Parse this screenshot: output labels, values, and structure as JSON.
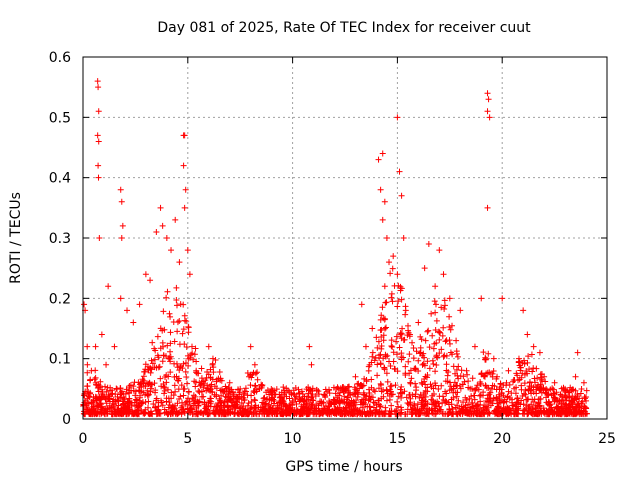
{
  "chart_data": {
    "type": "scatter",
    "title": "Day 081 of 2025, Rate Of TEC Index for receiver cuut",
    "xlabel": "GPS time / hours",
    "ylabel": "ROTI / TECUs",
    "xlim": [
      0,
      25
    ],
    "ylim": [
      0,
      0.6
    ],
    "xticks": [
      0,
      5,
      10,
      15,
      20,
      25
    ],
    "xtick_labels": [
      "0",
      "5",
      "10",
      "15",
      "20",
      "25"
    ],
    "yticks": [
      0,
      0.1,
      0.2,
      0.3,
      0.4,
      0.5,
      0.6
    ],
    "ytick_labels": [
      "0",
      "0.1",
      "0.2",
      "0.3",
      "0.4",
      "0.5",
      "0.6"
    ],
    "grid": true,
    "marker": "+",
    "color": "#ff0000",
    "series": [
      {
        "values": [
          [
            0.05,
            0.19
          ],
          [
            0.1,
            0.18
          ],
          [
            0.2,
            0.12
          ],
          [
            0.4,
            0.08
          ],
          [
            0.6,
            0.12
          ],
          [
            0.7,
            0.56
          ],
          [
            0.72,
            0.55
          ],
          [
            0.75,
            0.51
          ],
          [
            0.7,
            0.47
          ],
          [
            0.75,
            0.46
          ],
          [
            0.72,
            0.42
          ],
          [
            0.74,
            0.4
          ],
          [
            0.78,
            0.3
          ],
          [
            0.9,
            0.14
          ],
          [
            1.1,
            0.09
          ],
          [
            1.2,
            0.22
          ],
          [
            1.5,
            0.12
          ],
          [
            1.8,
            0.38
          ],
          [
            1.85,
            0.36
          ],
          [
            1.9,
            0.32
          ],
          [
            1.85,
            0.3
          ],
          [
            1.8,
            0.2
          ],
          [
            2.1,
            0.18
          ],
          [
            2.4,
            0.16
          ],
          [
            2.7,
            0.19
          ],
          [
            3.0,
            0.24
          ],
          [
            3.2,
            0.23
          ],
          [
            3.5,
            0.31
          ],
          [
            3.7,
            0.35
          ],
          [
            3.8,
            0.32
          ],
          [
            4.0,
            0.3
          ],
          [
            4.2,
            0.28
          ],
          [
            4.4,
            0.33
          ],
          [
            4.6,
            0.26
          ],
          [
            4.8,
            0.47
          ],
          [
            4.85,
            0.47
          ],
          [
            4.8,
            0.42
          ],
          [
            4.9,
            0.38
          ],
          [
            4.85,
            0.35
          ],
          [
            5.0,
            0.28
          ],
          [
            5.1,
            0.24
          ],
          [
            5.2,
            0.12
          ],
          [
            5.4,
            0.08
          ],
          [
            6.0,
            0.12
          ],
          [
            6.2,
            0.1
          ],
          [
            7.0,
            0.06
          ],
          [
            7.5,
            0.05
          ],
          [
            8.0,
            0.12
          ],
          [
            8.2,
            0.09
          ],
          [
            8.4,
            0.05
          ],
          [
            9.0,
            0.04
          ],
          [
            10.0,
            0.03
          ],
          [
            10.8,
            0.12
          ],
          [
            10.9,
            0.09
          ],
          [
            11.5,
            0.04
          ],
          [
            12.0,
            0.03
          ],
          [
            12.5,
            0.05
          ],
          [
            13.0,
            0.07
          ],
          [
            13.3,
            0.19
          ],
          [
            13.5,
            0.12
          ],
          [
            13.8,
            0.15
          ],
          [
            14.1,
            0.43
          ],
          [
            14.3,
            0.44
          ],
          [
            14.2,
            0.38
          ],
          [
            14.4,
            0.36
          ],
          [
            14.3,
            0.33
          ],
          [
            14.5,
            0.3
          ],
          [
            14.6,
            0.26
          ],
          [
            14.4,
            0.22
          ],
          [
            14.8,
            0.27
          ],
          [
            15.0,
            0.5
          ],
          [
            15.1,
            0.41
          ],
          [
            15.2,
            0.37
          ],
          [
            15.3,
            0.3
          ],
          [
            15.0,
            0.24
          ],
          [
            15.4,
            0.18
          ],
          [
            15.6,
            0.14
          ],
          [
            16.0,
            0.16
          ],
          [
            16.3,
            0.25
          ],
          [
            16.5,
            0.29
          ],
          [
            16.8,
            0.22
          ],
          [
            17.0,
            0.28
          ],
          [
            17.2,
            0.24
          ],
          [
            17.5,
            0.2
          ],
          [
            17.8,
            0.13
          ],
          [
            18.0,
            0.18
          ],
          [
            18.3,
            0.08
          ],
          [
            18.7,
            0.12
          ],
          [
            19.0,
            0.2
          ],
          [
            19.3,
            0.54
          ],
          [
            19.35,
            0.53
          ],
          [
            19.3,
            0.51
          ],
          [
            19.4,
            0.5
          ],
          [
            19.3,
            0.35
          ],
          [
            19.6,
            0.1
          ],
          [
            20.0,
            0.2
          ],
          [
            20.3,
            0.08
          ],
          [
            20.8,
            0.1
          ],
          [
            21.0,
            0.18
          ],
          [
            21.2,
            0.14
          ],
          [
            21.5,
            0.12
          ],
          [
            21.8,
            0.11
          ],
          [
            22.0,
            0.07
          ],
          [
            22.5,
            0.06
          ],
          [
            23.0,
            0.05
          ],
          [
            23.5,
            0.07
          ],
          [
            23.6,
            0.11
          ],
          [
            23.9,
            0.06
          ],
          [
            24.0,
            0.03
          ]
        ]
      }
    ]
  }
}
